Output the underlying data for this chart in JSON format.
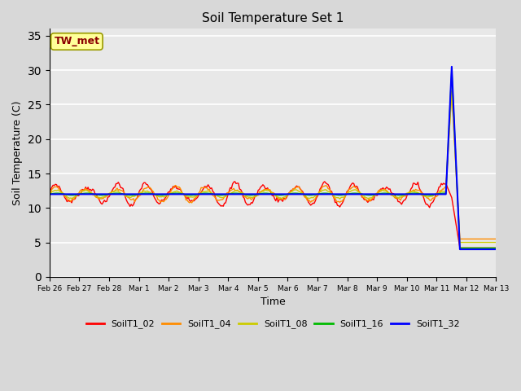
{
  "title": "Soil Temperature Set 1",
  "xlabel": "Time",
  "ylabel": "Soil Temperature (C)",
  "ylim": [
    0,
    36
  ],
  "yticks": [
    0,
    5,
    10,
    15,
    20,
    25,
    30,
    35
  ],
  "annotation_text": "TW_met",
  "annotation_color": "#8B0000",
  "annotation_bg": "#FFFF99",
  "annotation_edge": "#999900",
  "fig_bg": "#D8D8D8",
  "plot_bg": "#E8E8E8",
  "grid_color": "#FFFFFF",
  "series": {
    "SoilT1_02": {
      "color": "#FF0000",
      "lw": 1.0
    },
    "SoilT1_04": {
      "color": "#FF8C00",
      "lw": 1.0
    },
    "SoilT1_08": {
      "color": "#CCCC00",
      "lw": 1.0
    },
    "SoilT1_16": {
      "color": "#00BB00",
      "lw": 1.0
    },
    "SoilT1_32": {
      "color": "#0000FF",
      "lw": 1.5
    }
  },
  "tick_labels": [
    "Feb 26",
    "Feb 27",
    "Feb 28",
    "Mar 1",
    "Mar 2",
    "Mar 3",
    "Mar 4",
    "Mar 5",
    "Mar 6",
    "Mar 7",
    "Mar 8",
    "Mar 9",
    "Mar 10",
    "Mar 11",
    "Mar 12",
    "Mar 13"
  ]
}
